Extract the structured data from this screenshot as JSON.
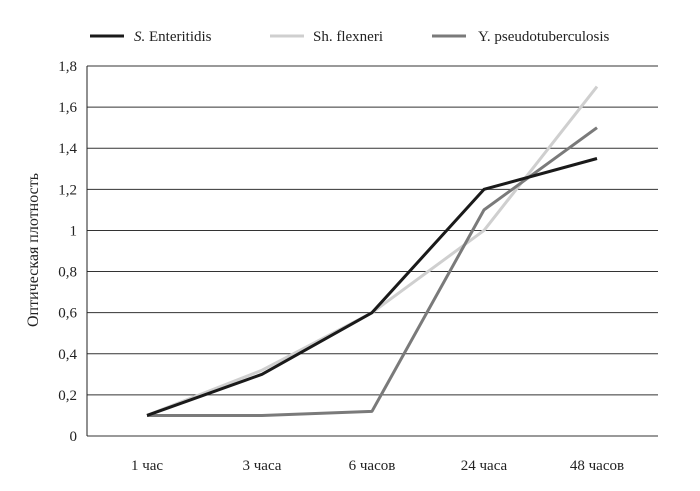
{
  "chart_data": {
    "type": "line",
    "title": "",
    "xlabel": "",
    "ylabel": "Оптическая плотность",
    "categories": [
      "1  час",
      "3 часа",
      "6 часов",
      "24 часа",
      "48 часов"
    ],
    "ylim": [
      0,
      1.8
    ],
    "yticks": [
      0,
      0.2,
      0.4,
      0.6,
      0.8,
      1,
      1.2,
      1.4,
      1.6,
      1.8
    ],
    "ytick_labels": [
      "0",
      "0,2",
      "0,4",
      "0,6",
      "0,8",
      "1",
      "1,2",
      "1,4",
      "1,6",
      "1,8"
    ],
    "grid": true,
    "legend_position": "top",
    "series": [
      {
        "name_prefix": "S.",
        "name_rest": " Enteritidis",
        "color": "#1a1a1a",
        "values": [
          0.1,
          0.3,
          0.6,
          1.2,
          1.35
        ]
      },
      {
        "name": "Sh. flexneri",
        "color": "#cfcfcf",
        "values": [
          0.1,
          0.32,
          0.6,
          1.0,
          1.7
        ]
      },
      {
        "name": "Y. pseudotuberculosis",
        "color": "#7a7a7a",
        "values": [
          0.1,
          0.1,
          0.12,
          1.1,
          1.5
        ]
      }
    ]
  }
}
